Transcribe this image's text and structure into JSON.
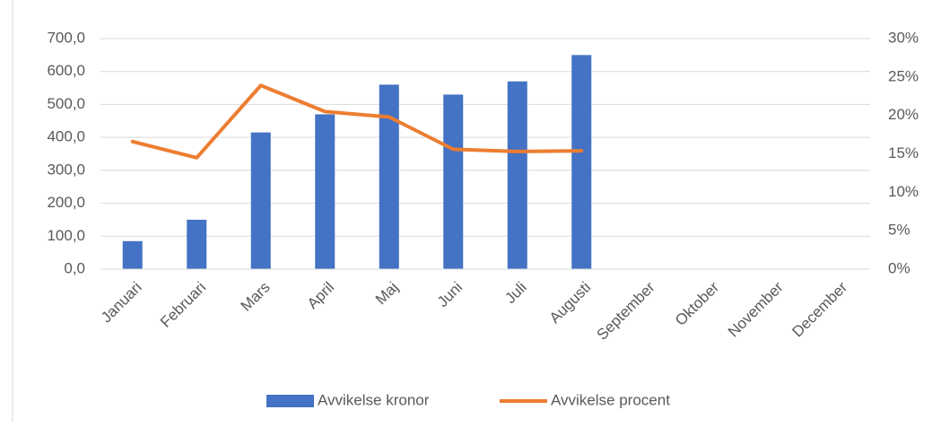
{
  "chart_data": {
    "type": "bar",
    "categories": [
      "Januari",
      "Februari",
      "Mars",
      "April",
      "Maj",
      "Juni",
      "Juli",
      "Augusti",
      "September",
      "Oktober",
      "November",
      "December"
    ],
    "series": [
      {
        "name": "Avvikelse kronor",
        "type": "bar",
        "color": "#4472c4",
        "axis": "y",
        "values": [
          85,
          150,
          415,
          470,
          560,
          530,
          570,
          650,
          null,
          null,
          null,
          null
        ]
      },
      {
        "name": "Avvikelse procent",
        "type": "line",
        "color": "#ed7d31",
        "axis": "y2",
        "values": [
          16.6,
          14.5,
          23.9,
          20.5,
          19.8,
          15.6,
          15.3,
          15.4,
          null,
          null,
          null,
          null
        ]
      }
    ],
    "ylim": [
      0,
      700
    ],
    "yticks": [
      {
        "value": 0,
        "label": "0,0"
      },
      {
        "value": 100,
        "label": "100,0"
      },
      {
        "value": 200,
        "label": "200,0"
      },
      {
        "value": 300,
        "label": "300,0"
      },
      {
        "value": 400,
        "label": "400,0"
      },
      {
        "value": 500,
        "label": "500,0"
      },
      {
        "value": 600,
        "label": "600,0"
      },
      {
        "value": 700,
        "label": "700,0"
      }
    ],
    "y2lim": [
      0,
      30
    ],
    "y2ticks": [
      {
        "value": 0,
        "label": "0%"
      },
      {
        "value": 5,
        "label": "5%"
      },
      {
        "value": 10,
        "label": "10%"
      },
      {
        "value": 15,
        "label": "15%"
      },
      {
        "value": 20,
        "label": "20%"
      },
      {
        "value": 25,
        "label": "25%"
      },
      {
        "value": 30,
        "label": "30%"
      }
    ],
    "grid": true,
    "legend": "bottom"
  }
}
